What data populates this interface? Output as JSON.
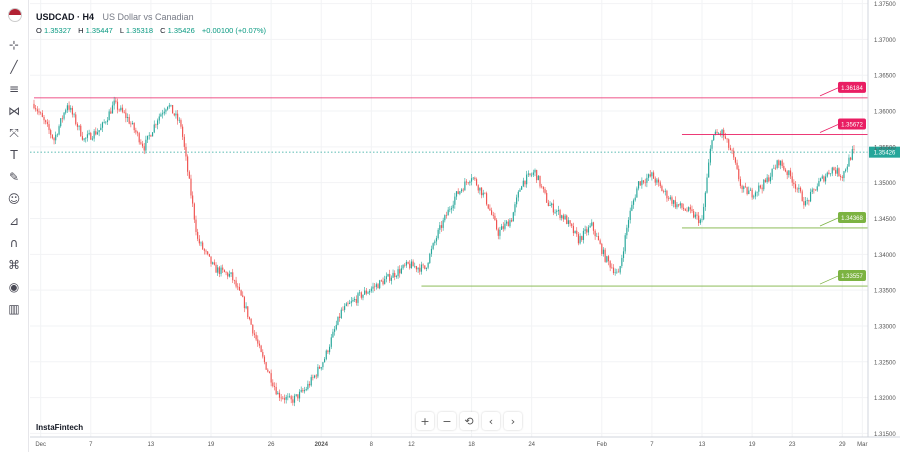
{
  "header": {
    "symbol": "USDCAD · H4",
    "description": "US Dollar vs Canadian",
    "open_label": "O",
    "open": "1.35327",
    "high_label": "H",
    "high": "1.35447",
    "low_label": "L",
    "low": "1.35318",
    "close_label": "C",
    "close": "1.35426",
    "change": "+0.00100 (+0.07%)"
  },
  "brand": "InstaFintech",
  "nav": {
    "zoom_in": "+",
    "zoom_out": "−",
    "reset": "⟲",
    "prev": "‹",
    "next": "›"
  },
  "colors": {
    "up": "#26a69a",
    "down": "#ef5350",
    "resistance": "#e91e63",
    "support": "#7cb342",
    "current": "#26a69a"
  },
  "chart_data": {
    "type": "candlestick",
    "ylim": [
      1.3145,
      1.3755
    ],
    "y_ticks": [
      "1.37500",
      "1.37000",
      "1.36500",
      "1.36000",
      "1.35500",
      "1.35000",
      "1.34500",
      "1.34000",
      "1.33500",
      "1.33000",
      "1.32500",
      "1.32000",
      "1.31500"
    ],
    "x_ticks": [
      {
        "label": "Dec",
        "idx": 4
      },
      {
        "label": "7",
        "idx": 34
      },
      {
        "label": "13",
        "idx": 70
      },
      {
        "label": "19",
        "idx": 106
      },
      {
        "label": "26",
        "idx": 142
      },
      {
        "label": "2024",
        "idx": 172
      },
      {
        "label": "8",
        "idx": 202
      },
      {
        "label": "12",
        "idx": 226
      },
      {
        "label": "18",
        "idx": 262
      },
      {
        "label": "24",
        "idx": 298
      },
      {
        "label": "Feb",
        "idx": 340
      },
      {
        "label": "7",
        "idx": 370
      },
      {
        "label": "13",
        "idx": 400
      },
      {
        "label": "19",
        "idx": 430
      },
      {
        "label": "23",
        "idx": 454
      },
      {
        "label": "29",
        "idx": 484
      },
      {
        "label": "Mar",
        "idx": 496
      }
    ],
    "levels": [
      {
        "value": 1.36184,
        "label": "1.36184",
        "kind": "resistance",
        "start_idx": 0
      },
      {
        "value": 1.35672,
        "label": "1.35672",
        "kind": "resistance",
        "start_idx": 388
      },
      {
        "value": 1.34368,
        "label": "1.34368",
        "kind": "support",
        "start_idx": 388
      },
      {
        "value": 1.33557,
        "label": "1.33557",
        "kind": "support",
        "start_idx": 232
      }
    ],
    "current": {
      "value": 1.35426,
      "label": "1.35426"
    },
    "anchors": [
      [
        0,
        1.361
      ],
      [
        6,
        1.3585
      ],
      [
        12,
        1.356
      ],
      [
        20,
        1.361
      ],
      [
        30,
        1.356
      ],
      [
        40,
        1.3575
      ],
      [
        48,
        1.361
      ],
      [
        56,
        1.359
      ],
      [
        66,
        1.355
      ],
      [
        74,
        1.359
      ],
      [
        80,
        1.361
      ],
      [
        88,
        1.358
      ],
      [
        98,
        1.342
      ],
      [
        108,
        1.338
      ],
      [
        118,
        1.337
      ],
      [
        126,
        1.333
      ],
      [
        136,
        1.326
      ],
      [
        146,
        1.3205
      ],
      [
        154,
        1.3195
      ],
      [
        162,
        1.321
      ],
      [
        168,
        1.323
      ],
      [
        174,
        1.3255
      ],
      [
        184,
        1.332
      ],
      [
        194,
        1.334
      ],
      [
        204,
        1.3355
      ],
      [
        214,
        1.337
      ],
      [
        224,
        1.3385
      ],
      [
        234,
        1.338
      ],
      [
        242,
        1.343
      ],
      [
        252,
        1.348
      ],
      [
        262,
        1.351
      ],
      [
        270,
        1.348
      ],
      [
        278,
        1.343
      ],
      [
        286,
        1.345
      ],
      [
        292,
        1.35
      ],
      [
        300,
        1.3515
      ],
      [
        308,
        1.347
      ],
      [
        318,
        1.345
      ],
      [
        326,
        1.342
      ],
      [
        334,
        1.344
      ],
      [
        342,
        1.3395
      ],
      [
        350,
        1.337
      ],
      [
        356,
        1.345
      ],
      [
        362,
        1.35
      ],
      [
        370,
        1.351
      ],
      [
        376,
        1.349
      ],
      [
        384,
        1.347
      ],
      [
        392,
        1.346
      ],
      [
        400,
        1.3445
      ],
      [
        406,
        1.3565
      ],
      [
        412,
        1.357
      ],
      [
        418,
        1.354
      ],
      [
        424,
        1.349
      ],
      [
        430,
        1.3485
      ],
      [
        438,
        1.35
      ],
      [
        446,
        1.353
      ],
      [
        454,
        1.3505
      ],
      [
        462,
        1.347
      ],
      [
        470,
        1.35
      ],
      [
        478,
        1.352
      ],
      [
        484,
        1.351
      ],
      [
        490,
        1.3542
      ]
    ],
    "n": 491
  }
}
